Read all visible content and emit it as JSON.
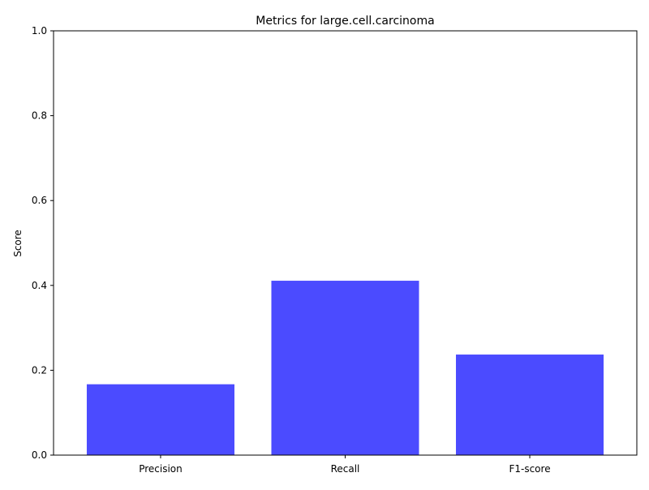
{
  "chart_data": {
    "type": "bar",
    "title": "Metrics for large.cell.carcinoma",
    "xlabel": "",
    "ylabel": "Score",
    "categories": [
      "Precision",
      "Recall",
      "F1-score"
    ],
    "values": [
      0.167,
      0.411,
      0.237
    ],
    "ylim": [
      0,
      1
    ],
    "yticks": [
      0.0,
      0.2,
      0.4,
      0.6,
      0.8,
      1.0
    ],
    "ytick_labels": [
      "0.0",
      "0.2",
      "0.4",
      "0.6",
      "0.8",
      "1.0"
    ],
    "bar_color": "#4b4bff",
    "grid": false
  }
}
